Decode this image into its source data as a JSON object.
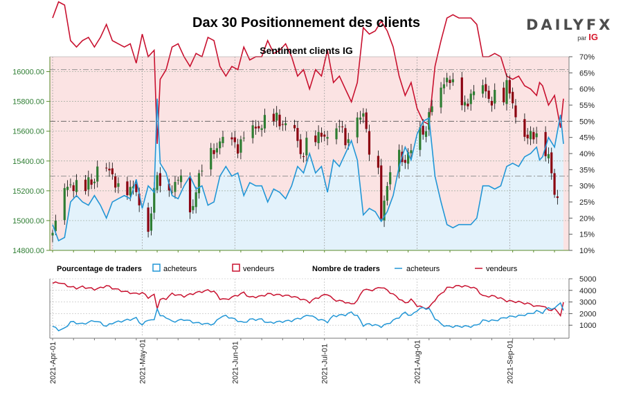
{
  "header": {
    "title": "Dax 30 Positionnement des clients",
    "subtitle": "Sentiment clients IG",
    "logo_text": "DAILYFX",
    "logo_sub": "par",
    "logo_ig": "IG"
  },
  "legend": {
    "pct_title": "Pourcentage de traders",
    "pct_buyers": "acheteurs",
    "pct_sellers": "vendeurs",
    "count_title": "Nombre de traders",
    "count_buyers": "acheteurs",
    "count_sellers": "vendeurs"
  },
  "colors": {
    "buyers": "#2196d6",
    "sellers": "#c8102e",
    "buyers_fill": "#e3f2fb",
    "sellers_fill": "#fbe3e3",
    "up_candle": "#2e7d32",
    "down_candle": "#8b0010",
    "wick": "#000000"
  },
  "chart_data": [
    {
      "type": "candlestick",
      "name": "price",
      "title": "Sentiment clients IG",
      "ylim": [
        14800,
        16100
      ],
      "y_ticks": [
        "14800.00",
        "15000.00",
        "15200.00",
        "15400.00",
        "15600.00",
        "15800.00",
        "16000.00"
      ],
      "y_tick_values": [
        14800,
        15000,
        15200,
        15400,
        15600,
        15800,
        16000
      ],
      "x_labels": [
        "2021-Apr-01",
        "2021-May-01",
        "2021-Jun-01",
        "2021-Jul-01",
        "2021-Aug-01",
        "2021-Sep-01"
      ],
      "x_label_days": [
        0,
        30,
        61,
        91,
        122,
        153
      ],
      "days": 172,
      "close_anchors": [
        [
          0,
          14900
        ],
        [
          3,
          15150
        ],
        [
          6,
          15250
        ],
        [
          10,
          15200
        ],
        [
          14,
          15280
        ],
        [
          16,
          15450
        ],
        [
          20,
          15280
        ],
        [
          24,
          15220
        ],
        [
          28,
          15200
        ],
        [
          32,
          14950
        ],
        [
          35,
          15300
        ],
        [
          38,
          15200
        ],
        [
          42,
          15250
        ],
        [
          44,
          15400
        ],
        [
          46,
          15050
        ],
        [
          50,
          15350
        ],
        [
          54,
          15480
        ],
        [
          58,
          15550
        ],
        [
          62,
          15500
        ],
        [
          66,
          15580
        ],
        [
          70,
          15650
        ],
        [
          74,
          15680
        ],
        [
          78,
          15650
        ],
        [
          80,
          15720
        ],
        [
          83,
          15420
        ],
        [
          86,
          15600
        ],
        [
          90,
          15550
        ],
        [
          93,
          15620
        ],
        [
          96,
          15650
        ],
        [
          98,
          15520
        ],
        [
          102,
          15720
        ],
        [
          104,
          15700
        ],
        [
          106,
          15480
        ],
        [
          108,
          15650
        ],
        [
          110,
          15050
        ],
        [
          112,
          15200
        ],
        [
          114,
          15480
        ],
        [
          116,
          15450
        ],
        [
          118,
          15400
        ],
        [
          120,
          15460
        ],
        [
          122,
          15620
        ],
        [
          124,
          15580
        ],
        [
          126,
          15700
        ],
        [
          128,
          15800
        ],
        [
          130,
          15850
        ],
        [
          132,
          15980
        ],
        [
          134,
          15900
        ],
        [
          136,
          15800
        ],
        [
          138,
          15750
        ],
        [
          140,
          15860
        ],
        [
          142,
          15850
        ],
        [
          144,
          15900
        ],
        [
          146,
          15800
        ],
        [
          148,
          15850
        ],
        [
          150,
          15780
        ],
        [
          152,
          15900
        ],
        [
          154,
          15800
        ],
        [
          156,
          15650
        ],
        [
          158,
          15580
        ],
        [
          160,
          15550
        ],
        [
          162,
          15600
        ],
        [
          164,
          15500
        ],
        [
          166,
          15450
        ],
        [
          168,
          15150
        ],
        [
          169,
          15200
        ],
        [
          170,
          15500
        ],
        [
          171,
          15650
        ]
      ]
    },
    {
      "type": "area",
      "name": "net_long_pct",
      "y_axis": "right",
      "ylim": [
        10,
        70
      ],
      "y_ticks": [
        "10%",
        "15%",
        "20%",
        "25%",
        "30%",
        "35%",
        "40%",
        "45%",
        "50%",
        "55%",
        "60%",
        "65%",
        "70%"
      ],
      "y_tick_values": [
        10,
        15,
        20,
        25,
        30,
        35,
        40,
        45,
        50,
        55,
        60,
        65,
        70
      ],
      "buyers_pct_anchors": [
        [
          0,
          18
        ],
        [
          2,
          13
        ],
        [
          4,
          14
        ],
        [
          6,
          25
        ],
        [
          8,
          27
        ],
        [
          10,
          25
        ],
        [
          12,
          24
        ],
        [
          14,
          27
        ],
        [
          16,
          24
        ],
        [
          18,
          20
        ],
        [
          20,
          25
        ],
        [
          22,
          26
        ],
        [
          24,
          27
        ],
        [
          26,
          26
        ],
        [
          28,
          32
        ],
        [
          30,
          23
        ],
        [
          32,
          30
        ],
        [
          34,
          28
        ],
        [
          35,
          57
        ],
        [
          36,
          37
        ],
        [
          38,
          34
        ],
        [
          40,
          27
        ],
        [
          42,
          26
        ],
        [
          44,
          30
        ],
        [
          46,
          33
        ],
        [
          48,
          29
        ],
        [
          50,
          30
        ],
        [
          52,
          24
        ],
        [
          54,
          25
        ],
        [
          56,
          33
        ],
        [
          58,
          36
        ],
        [
          60,
          33
        ],
        [
          62,
          34
        ],
        [
          64,
          27
        ],
        [
          66,
          31
        ],
        [
          68,
          30
        ],
        [
          70,
          30
        ],
        [
          72,
          25
        ],
        [
          74,
          29
        ],
        [
          76,
          28
        ],
        [
          78,
          26
        ],
        [
          80,
          30
        ],
        [
          82,
          36
        ],
        [
          84,
          34
        ],
        [
          86,
          40
        ],
        [
          88,
          34
        ],
        [
          90,
          36
        ],
        [
          92,
          28
        ],
        [
          94,
          38
        ],
        [
          96,
          36
        ],
        [
          98,
          40
        ],
        [
          100,
          44
        ],
        [
          102,
          38
        ],
        [
          104,
          21
        ],
        [
          106,
          23
        ],
        [
          108,
          22
        ],
        [
          110,
          19
        ],
        [
          112,
          22
        ],
        [
          114,
          27
        ],
        [
          116,
          36
        ],
        [
          118,
          42
        ],
        [
          120,
          38
        ],
        [
          122,
          46
        ],
        [
          124,
          50
        ],
        [
          126,
          51
        ],
        [
          128,
          33
        ],
        [
          130,
          25
        ],
        [
          132,
          18
        ],
        [
          134,
          17
        ],
        [
          136,
          18
        ],
        [
          138,
          18
        ],
        [
          140,
          18
        ],
        [
          142,
          20
        ],
        [
          144,
          30
        ],
        [
          146,
          30
        ],
        [
          148,
          29
        ],
        [
          150,
          30
        ],
        [
          152,
          36
        ],
        [
          154,
          37
        ],
        [
          156,
          36
        ],
        [
          158,
          39
        ],
        [
          160,
          40
        ],
        [
          162,
          42
        ],
        [
          163,
          38
        ],
        [
          164,
          39
        ],
        [
          166,
          45
        ],
        [
          168,
          42
        ],
        [
          170,
          52
        ],
        [
          171,
          43
        ]
      ]
    },
    {
      "type": "line",
      "name": "trader_counts",
      "title": "Nombre de traders",
      "ylim": [
        0,
        5000
      ],
      "y_ticks": [
        "1000",
        "2000",
        "3000",
        "4000",
        "5000"
      ],
      "y_tick_values": [
        1000,
        2000,
        3000,
        4000,
        5000
      ],
      "buyers_anchors": [
        [
          0,
          900
        ],
        [
          2,
          600
        ],
        [
          4,
          700
        ],
        [
          6,
          1300
        ],
        [
          8,
          1200
        ],
        [
          10,
          1100
        ],
        [
          14,
          1400
        ],
        [
          16,
          1200
        ],
        [
          18,
          900
        ],
        [
          20,
          1200
        ],
        [
          24,
          1400
        ],
        [
          28,
          1600
        ],
        [
          30,
          1000
        ],
        [
          32,
          1500
        ],
        [
          34,
          1400
        ],
        [
          35,
          2500
        ],
        [
          36,
          1800
        ],
        [
          38,
          1700
        ],
        [
          40,
          1300
        ],
        [
          44,
          1500
        ],
        [
          48,
          1200
        ],
        [
          52,
          1100
        ],
        [
          54,
          1100
        ],
        [
          56,
          1700
        ],
        [
          58,
          1800
        ],
        [
          60,
          1600
        ],
        [
          64,
          1200
        ],
        [
          66,
          1500
        ],
        [
          70,
          1500
        ],
        [
          72,
          1200
        ],
        [
          76,
          1300
        ],
        [
          80,
          1400
        ],
        [
          84,
          1700
        ],
        [
          86,
          1900
        ],
        [
          88,
          1600
        ],
        [
          92,
          1300
        ],
        [
          94,
          1800
        ],
        [
          98,
          1900
        ],
        [
          100,
          2100
        ],
        [
          102,
          1800
        ],
        [
          104,
          1000
        ],
        [
          106,
          1100
        ],
        [
          108,
          1000
        ],
        [
          110,
          900
        ],
        [
          112,
          1100
        ],
        [
          116,
          1700
        ],
        [
          118,
          2100
        ],
        [
          120,
          1800
        ],
        [
          122,
          2300
        ],
        [
          124,
          2500
        ],
        [
          126,
          2400
        ],
        [
          128,
          1600
        ],
        [
          130,
          1100
        ],
        [
          132,
          900
        ],
        [
          136,
          900
        ],
        [
          140,
          900
        ],
        [
          142,
          1000
        ],
        [
          144,
          1400
        ],
        [
          148,
          1400
        ],
        [
          152,
          1700
        ],
        [
          156,
          1800
        ],
        [
          160,
          2000
        ],
        [
          162,
          2200
        ],
        [
          164,
          2100
        ],
        [
          166,
          2500
        ],
        [
          168,
          2400
        ],
        [
          170,
          3000
        ],
        [
          171,
          2200
        ]
      ],
      "sellers_anchors": [
        [
          0,
          4600
        ],
        [
          2,
          4700
        ],
        [
          4,
          4500
        ],
        [
          6,
          4300
        ],
        [
          8,
          4200
        ],
        [
          10,
          4300
        ],
        [
          14,
          4100
        ],
        [
          16,
          4200
        ],
        [
          18,
          4400
        ],
        [
          20,
          4200
        ],
        [
          24,
          3900
        ],
        [
          28,
          3700
        ],
        [
          30,
          3800
        ],
        [
          32,
          3400
        ],
        [
          34,
          3600
        ],
        [
          35,
          2500
        ],
        [
          36,
          3200
        ],
        [
          38,
          3300
        ],
        [
          40,
          3700
        ],
        [
          44,
          3500
        ],
        [
          48,
          3800
        ],
        [
          52,
          4000
        ],
        [
          54,
          3900
        ],
        [
          56,
          3300
        ],
        [
          58,
          3200
        ],
        [
          60,
          3400
        ],
        [
          64,
          3800
        ],
        [
          66,
          3400
        ],
        [
          70,
          3500
        ],
        [
          72,
          3700
        ],
        [
          76,
          3600
        ],
        [
          80,
          3500
        ],
        [
          84,
          3200
        ],
        [
          86,
          3000
        ],
        [
          88,
          3300
        ],
        [
          92,
          3700
        ],
        [
          94,
          3200
        ],
        [
          98,
          3000
        ],
        [
          100,
          2800
        ],
        [
          102,
          3100
        ],
        [
          104,
          4100
        ],
        [
          106,
          4000
        ],
        [
          108,
          4100
        ],
        [
          110,
          4300
        ],
        [
          112,
          4000
        ],
        [
          116,
          3300
        ],
        [
          118,
          2900
        ],
        [
          120,
          3200
        ],
        [
          122,
          2700
        ],
        [
          124,
          2500
        ],
        [
          126,
          2500
        ],
        [
          128,
          3200
        ],
        [
          130,
          3700
        ],
        [
          132,
          4200
        ],
        [
          136,
          4400
        ],
        [
          140,
          4300
        ],
        [
          142,
          4100
        ],
        [
          144,
          3500
        ],
        [
          148,
          3500
        ],
        [
          152,
          3100
        ],
        [
          156,
          3000
        ],
        [
          160,
          2800
        ],
        [
          162,
          2600
        ],
        [
          164,
          2700
        ],
        [
          166,
          2300
        ],
        [
          168,
          2400
        ],
        [
          170,
          1900
        ],
        [
          171,
          2900
        ]
      ]
    }
  ]
}
